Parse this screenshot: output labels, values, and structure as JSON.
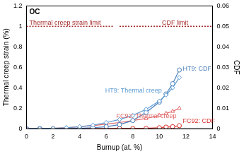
{
  "chart_data": {
    "type": "line",
    "title": "OC",
    "x_label": "Burnup (at. %)",
    "y_label": "Thermal creep strain (%)",
    "y2_label": "CDF",
    "xlim": [
      0,
      14
    ],
    "xticks": [
      0,
      2,
      4,
      6,
      8,
      10,
      12,
      14
    ],
    "ylim": [
      0,
      1.2
    ],
    "yticks": [
      0,
      0.2,
      0.4,
      0.6,
      0.8,
      1,
      1.2
    ],
    "y2lim": [
      0,
      0.06
    ],
    "y2ticks": [
      0,
      0.01,
      0.02,
      0.03,
      0.04,
      0.05,
      0.06
    ],
    "grid": false,
    "series": [
      {
        "name": "Thermal creep strain limit",
        "color": "#a52a2a",
        "line_style": "dotted",
        "marker": "none",
        "x": [
          0,
          6.5
        ],
        "values": [
          1,
          1
        ]
      },
      {
        "name": "CDF limit",
        "color": "#a52a2a",
        "line_style": "dotted",
        "marker": "none",
        "axis": "y2",
        "x": [
          7,
          14
        ],
        "values": [
          0.05,
          0.05
        ]
      },
      {
        "name": "HT9: Thermal creep",
        "color": "#5b9bd5",
        "line_style": "solid",
        "marker": "diamond",
        "x": [
          0,
          1,
          2,
          3,
          4,
          5,
          6,
          7,
          8,
          9,
          10,
          10.5,
          11,
          11.5
        ],
        "values": [
          0,
          0.002,
          0.005,
          0.01,
          0.02,
          0.035,
          0.06,
          0.09,
          0.13,
          0.19,
          0.27,
          0.33,
          0.4,
          0.5
        ]
      },
      {
        "name": "HT9: CDF",
        "color": "#4a7ebb",
        "line_style": "solid",
        "marker": "circle",
        "axis": "y2",
        "x": [
          0,
          1,
          2,
          3,
          4,
          5,
          6,
          7,
          8,
          9,
          10,
          10.5,
          11,
          11.5
        ],
        "values": [
          0,
          0,
          0,
          0,
          0.0002,
          0.0005,
          0.001,
          0.002,
          0.004,
          0.008,
          0.013,
          0.017,
          0.022,
          0.0287
        ]
      },
      {
        "name": "FC92: Thermal creep",
        "color": "#e06666",
        "line_style": "solid",
        "marker": "triangle",
        "x": [
          0,
          1,
          2,
          3,
          4,
          5,
          6,
          7,
          8,
          9,
          10,
          10.5,
          11,
          11.5
        ],
        "values": [
          0,
          0.002,
          0.005,
          0.01,
          0.02,
          0.03,
          0.045,
          0.06,
          0.08,
          0.1,
          0.13,
          0.15,
          0.17,
          0.2
        ]
      },
      {
        "name": "FC92: CDF",
        "color": "#d9302c",
        "line_style": "solid",
        "marker": "circle",
        "axis": "y2",
        "x": [
          0,
          1,
          2,
          3,
          4,
          5,
          6,
          7,
          8,
          9,
          10,
          10.5,
          11,
          11.5
        ],
        "values": [
          0,
          0,
          0,
          0,
          0,
          0,
          0,
          0.0001,
          0.0001,
          0.0002,
          0.0005,
          0.0008,
          0.001,
          0.0015
        ]
      }
    ]
  }
}
